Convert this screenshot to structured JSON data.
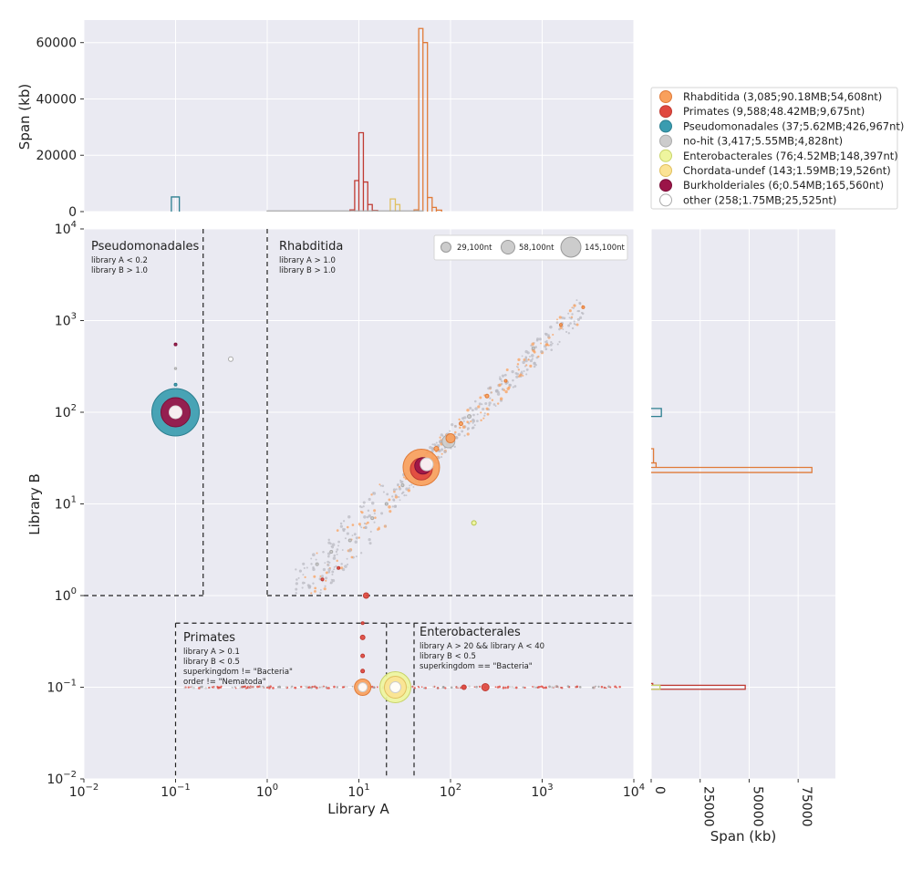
{
  "chart_data": {
    "type": "scatter",
    "xlabel": "Library A",
    "ylabel": "Library B",
    "xscale": "log",
    "yscale": "log",
    "xlim": [
      0.01,
      10000
    ],
    "ylim": [
      0.01,
      10000
    ],
    "x_ticks": [
      {
        "value": 0.01,
        "base": "10",
        "exp": "−2"
      },
      {
        "value": 0.1,
        "base": "10",
        "exp": "−1"
      },
      {
        "value": 1,
        "base": "10",
        "exp": "0"
      },
      {
        "value": 10,
        "base": "10",
        "exp": "1"
      },
      {
        "value": 100,
        "base": "10",
        "exp": "2"
      },
      {
        "value": 1000,
        "base": "10",
        "exp": "3"
      },
      {
        "value": 10000,
        "base": "10",
        "exp": "4"
      }
    ],
    "y_ticks": [
      {
        "value": 0.01,
        "base": "10",
        "exp": "−2"
      },
      {
        "value": 0.1,
        "base": "10",
        "exp": "−1"
      },
      {
        "value": 1,
        "base": "10",
        "exp": "0"
      },
      {
        "value": 10,
        "base": "10",
        "exp": "1"
      },
      {
        "value": 100,
        "base": "10",
        "exp": "2"
      },
      {
        "value": 1000,
        "base": "10",
        "exp": "3"
      },
      {
        "value": 10000,
        "base": "10",
        "exp": "4"
      }
    ],
    "grid": true,
    "legend_placement": "top-right",
    "legend": [
      {
        "label": "Rhabditida (3,085;90.18MB;54,608nt)",
        "color": "#f9a05c",
        "edge": "#e07b39"
      },
      {
        "label": "Primates (9,588;48.42MB;9,675nt)",
        "color": "#e0483f",
        "edge": "#c03a32"
      },
      {
        "label": "Pseudomonadales (37;5.62MB;426,967nt)",
        "color": "#3a9cb0",
        "edge": "#2c7f90"
      },
      {
        "label": "no-hit (3,417;5.55MB;4,828nt)",
        "color": "#cccccc",
        "edge": "#aaaaaa"
      },
      {
        "label": "Enterobacterales (76;4.52MB;148,397nt)",
        "color": "#eef59e",
        "edge": "#c8d46a"
      },
      {
        "label": "Chordata-undef (143;1.59MB;19,526nt)",
        "color": "#fbe394",
        "edge": "#e0c060"
      },
      {
        "label": "Burkholderiales (6;0.54MB;165,560nt)",
        "color": "#9b1448",
        "edge": "#7a0f38"
      },
      {
        "label": "other (258;1.75MB;25,525nt)",
        "color": "#ffffff",
        "edge": "#aaaaaa"
      }
    ],
    "size_legend": [
      "29,100nt",
      "58,100nt",
      "145,100nt"
    ],
    "points": [
      {
        "x": 0.1,
        "y": 100,
        "r": 26,
        "color": "#3a9cb0",
        "edge": "#2c7f90"
      },
      {
        "x": 0.1,
        "y": 100,
        "r": 16,
        "color": "#9b1448",
        "edge": "#7a0f38"
      },
      {
        "x": 0.1,
        "y": 100,
        "r": 7,
        "color": "#ffffff",
        "edge": "#dddddd"
      },
      {
        "x": 0.1,
        "y": 550,
        "r": 1.5,
        "color": "#9b1448",
        "edge": "#7a0f38"
      },
      {
        "x": 0.1,
        "y": 300,
        "r": 1.2,
        "color": "#cccccc",
        "edge": "#aaaaaa"
      },
      {
        "x": 0.1,
        "y": 200,
        "r": 1.5,
        "color": "#3a9cb0",
        "edge": "#2c7f90"
      },
      {
        "x": 0.4,
        "y": 380,
        "r": 2.5,
        "color": "#ffffff",
        "edge": "#aaaaaa"
      },
      {
        "x": 48,
        "y": 25,
        "r": 20,
        "color": "#f9a05c",
        "edge": "#e07b39"
      },
      {
        "x": 48,
        "y": 24,
        "r": 12,
        "color": "#e0483f",
        "edge": "#c03a32"
      },
      {
        "x": 50,
        "y": 26,
        "r": 9,
        "color": "#9b1448",
        "edge": "#7a0f38"
      },
      {
        "x": 55,
        "y": 27,
        "r": 7,
        "color": "#ffffff",
        "edge": "#cccccc"
      },
      {
        "x": 95,
        "y": 48,
        "r": 7,
        "color": "#cccccc",
        "edge": "#aaaaaa"
      },
      {
        "x": 100,
        "y": 52,
        "r": 5,
        "color": "#f9a05c",
        "edge": "#e07b39"
      },
      {
        "x": 180,
        "y": 6.2,
        "r": 2.5,
        "color": "#eef59e",
        "edge": "#b5c24a"
      },
      {
        "x": 12,
        "y": 1.0,
        "r": 3,
        "color": "#e0483f",
        "edge": "#c03a32"
      },
      {
        "x": 11,
        "y": 0.1,
        "r": 9,
        "color": "#f9a05c",
        "edge": "#e07b39"
      },
      {
        "x": 11,
        "y": 0.1,
        "r": 5,
        "color": "#ffffff",
        "edge": "#cccccc"
      },
      {
        "x": 25,
        "y": 0.1,
        "r": 17,
        "color": "#eef59e",
        "edge": "#c8d46a"
      },
      {
        "x": 25,
        "y": 0.1,
        "r": 12,
        "color": "#fbe394",
        "edge": "#e0c060"
      },
      {
        "x": 25,
        "y": 0.1,
        "r": 6,
        "color": "#ffffff",
        "edge": "#cccccc"
      },
      {
        "x": 240,
        "y": 0.1,
        "r": 4,
        "color": "#e0483f",
        "edge": "#c03a32"
      },
      {
        "x": 140,
        "y": 0.1,
        "r": 2.5,
        "color": "#e0483f",
        "edge": "#c03a32"
      },
      {
        "x": 11,
        "y": 0.35,
        "r": 2.5,
        "color": "#e0483f",
        "edge": "#c03a32"
      },
      {
        "x": 11,
        "y": 0.22,
        "r": 2,
        "color": "#e0483f",
        "edge": "#c03a32"
      },
      {
        "x": 11,
        "y": 0.15,
        "r": 2,
        "color": "#e0483f",
        "edge": "#c03a32"
      },
      {
        "x": 11,
        "y": 0.5,
        "r": 1.5,
        "color": "#e0483f",
        "edge": "#c03a32"
      },
      {
        "x": 2800,
        "y": 1400,
        "r": 1.5,
        "color": "#f9a05c",
        "edge": "#e07b39"
      },
      {
        "x": 1600,
        "y": 900,
        "r": 1.5,
        "color": "#f9a05c",
        "edge": "#e07b39"
      },
      {
        "x": 800,
        "y": 500,
        "r": 1.5,
        "color": "#cccccc",
        "edge": "#aaaaaa"
      },
      {
        "x": 400,
        "y": 220,
        "r": 1.5,
        "color": "#f9a05c",
        "edge": "#e07b39"
      },
      {
        "x": 250,
        "y": 150,
        "r": 2,
        "color": "#f9a05c",
        "edge": "#e07b39"
      },
      {
        "x": 160,
        "y": 90,
        "r": 2,
        "color": "#cccccc",
        "edge": "#aaaaaa"
      },
      {
        "x": 130,
        "y": 75,
        "r": 2,
        "color": "#f9a05c",
        "edge": "#e07b39"
      },
      {
        "x": 70,
        "y": 40,
        "r": 2.5,
        "color": "#f9a05c",
        "edge": "#e07b39"
      },
      {
        "x": 30,
        "y": 16,
        "r": 1.5,
        "color": "#cccccc",
        "edge": "#aaaaaa"
      },
      {
        "x": 20,
        "y": 10,
        "r": 1.5,
        "color": "#cccccc",
        "edge": "#aaaaaa"
      },
      {
        "x": 14,
        "y": 7,
        "r": 1.5,
        "color": "#cccccc",
        "edge": "#aaaaaa"
      },
      {
        "x": 8,
        "y": 4,
        "r": 1.5,
        "color": "#cccccc",
        "edge": "#aaaaaa"
      },
      {
        "x": 5,
        "y": 3,
        "r": 1.5,
        "color": "#cccccc",
        "edge": "#aaaaaa"
      },
      {
        "x": 3.5,
        "y": 2.2,
        "r": 1.5,
        "color": "#cccccc",
        "edge": "#aaaaaa"
      },
      {
        "x": 6,
        "y": 2,
        "r": 1.5,
        "color": "#e0483f",
        "edge": "#c03a32"
      },
      {
        "x": 4,
        "y": 1.5,
        "r": 1.5,
        "color": "#e0483f",
        "edge": "#c03a32"
      }
    ],
    "top_histogram": {
      "ylabel": "Span (kb)",
      "ylim": [
        0,
        68000
      ],
      "y_ticks": [
        {
          "value": 0,
          "label": "0"
        },
        {
          "value": 20000,
          "label": "20000"
        },
        {
          "value": 40000,
          "label": "40000"
        },
        {
          "value": 60000,
          "label": "60000"
        }
      ],
      "series": [
        {
          "color": "#e07b39",
          "bins": [
            [
              40,
              45,
              600
            ],
            [
              45,
              50,
              65000
            ],
            [
              50,
              56,
              60000
            ],
            [
              56,
              63,
              5000
            ],
            [
              63,
              70,
              1500
            ],
            [
              70,
              80,
              500
            ]
          ]
        },
        {
          "color": "#c03a32",
          "bins": [
            [
              8,
              9,
              600
            ],
            [
              9,
              10,
              11000
            ],
            [
              10,
              11.2,
              28000
            ],
            [
              11.2,
              12.5,
              10500
            ],
            [
              12.5,
              14,
              2500
            ],
            [
              14,
              16,
              400
            ]
          ]
        },
        {
          "color": "#2c7f90",
          "bins": [
            [
              0.09,
              0.11,
              5200
            ]
          ]
        },
        {
          "color": "#e0c060",
          "bins": [
            [
              22,
              25,
              4500
            ],
            [
              25,
              28,
              2500
            ]
          ]
        },
        {
          "color": "#aaaaaa",
          "bins": [
            [
              1,
              50,
              250
            ]
          ]
        }
      ]
    },
    "right_histogram": {
      "xlabel": "Span (kb)",
      "xlim": [
        0,
        94000
      ],
      "x_ticks": [
        {
          "value": 0,
          "label": "0"
        },
        {
          "value": 25000,
          "label": "25000"
        },
        {
          "value": 50000,
          "label": "50000"
        },
        {
          "value": 75000,
          "label": "75000"
        }
      ],
      "series": [
        {
          "color": "#e07b39",
          "bins": [
            [
              22,
              25,
              82000
            ],
            [
              25,
              28,
              2500
            ],
            [
              28,
              40,
              1200
            ]
          ]
        },
        {
          "color": "#c03a32",
          "bins": [
            [
              0.095,
              0.105,
              48000
            ],
            [
              0.105,
              0.11,
              800
            ]
          ]
        },
        {
          "color": "#2c7f90",
          "bins": [
            [
              90,
              110,
              5200
            ]
          ]
        },
        {
          "color": "#c8d46a",
          "bins": [
            [
              0.095,
              0.105,
              4500
            ]
          ]
        }
      ]
    },
    "regions": [
      {
        "title": "Pseudomonadales",
        "lines": [
          "library A < 0.2",
          "library B > 1.0"
        ]
      },
      {
        "title": "Rhabditida",
        "lines": [
          "library A > 1.0",
          "library B > 1.0"
        ]
      },
      {
        "title": "Primates",
        "lines": [
          "library A > 0.1",
          "library B < 0.5",
          "superkingdom != \"Bacteria\"",
          "order != \"Nematoda\""
        ]
      },
      {
        "title": "Enterobacterales",
        "lines": [
          "library A > 20  &&  library A < 40",
          "library B < 0.5",
          "superkingdom == \"Bacteria\""
        ]
      }
    ]
  }
}
